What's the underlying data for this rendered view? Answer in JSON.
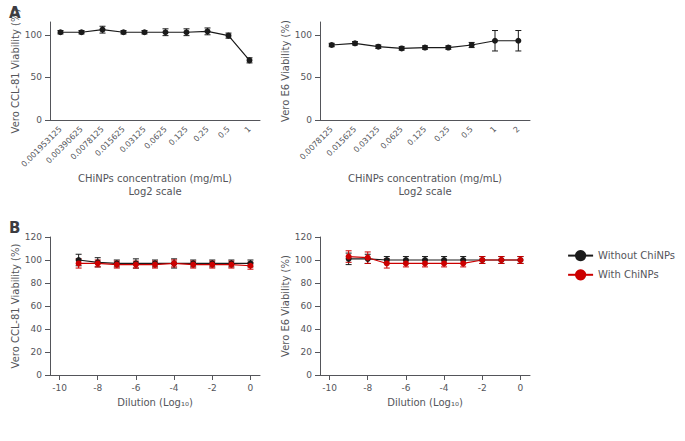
{
  "chart_data": [
    {
      "type": "line",
      "title": "A",
      "categories": [
        "0.001953125",
        "0.00390625",
        "0.0078125",
        "0.015625",
        "0.03125",
        "0.0625",
        "0.125",
        "0.25",
        "0.5",
        "1"
      ],
      "series": [
        {
          "color": "#1a1a1a",
          "values": [
            103,
            103,
            106,
            103,
            103,
            103,
            103,
            104,
            99,
            70
          ],
          "errors": [
            2,
            2,
            4,
            2,
            2,
            4,
            4,
            4,
            3,
            3
          ]
        }
      ],
      "xlabel": "CHiNPs concentration (mg/mL)\nLog2 scale",
      "ylabel": "Vero CCL-81 Viability (%)",
      "ylim": [
        0,
        115
      ],
      "yticks": [
        0,
        50,
        100
      ],
      "grid": false
    },
    {
      "type": "line",
      "categories": [
        "0.0078125",
        "0.015625",
        "0.03125",
        "0.0625",
        "0.125",
        "0.25",
        "0.5",
        "1",
        "2"
      ],
      "series": [
        {
          "color": "#1a1a1a",
          "values": [
            88,
            90,
            86,
            84,
            85,
            85,
            88,
            93,
            93
          ],
          "errors": [
            2,
            2,
            2,
            2,
            2,
            2,
            3,
            12,
            12
          ]
        }
      ],
      "xlabel": "CHiNPs concentration (mg/mL)\nLog2 scale",
      "ylabel": "Vero E6 Viability (%)",
      "ylim": [
        0,
        115
      ],
      "yticks": [
        0,
        50,
        100
      ],
      "grid": false
    },
    {
      "type": "line",
      "title": "B",
      "x": [
        -9,
        -8,
        -7,
        -6,
        -5,
        -4,
        -3,
        -2,
        -1,
        0
      ],
      "series": [
        {
          "name": "Without ChiNPs",
          "color": "#1a1a1a",
          "values": [
            100,
            98,
            97,
            97,
            97,
            97,
            97,
            97,
            97,
            97
          ],
          "errors": [
            5,
            4,
            3,
            4,
            3,
            4,
            3,
            3,
            3,
            3
          ]
        },
        {
          "name": "With ChiNPs",
          "color": "#cc0000",
          "values": [
            97,
            97,
            96,
            96,
            96,
            97,
            96,
            96,
            96,
            95
          ],
          "errors": [
            4,
            3,
            3,
            3,
            3,
            3,
            3,
            3,
            3,
            3
          ]
        }
      ],
      "xlabel": "Dilution (Log₁₀)",
      "ylabel": "Vero CCL-81 Viability (%)",
      "xlim": [
        -10.5,
        0.5
      ],
      "xticks": [
        -10,
        -8,
        -6,
        -4,
        -2,
        0
      ],
      "ylim": [
        0,
        120
      ],
      "yticks": [
        0,
        20,
        40,
        60,
        80,
        100,
        120
      ],
      "grid": false
    },
    {
      "type": "line",
      "x": [
        -9,
        -8,
        -7,
        -6,
        -5,
        -4,
        -3,
        -2,
        -1,
        0
      ],
      "series": [
        {
          "name": "Without ChiNPs",
          "color": "#1a1a1a",
          "values": [
            101,
            101,
            100,
            100,
            100,
            100,
            100,
            100,
            100,
            100
          ],
          "errors": [
            5,
            4,
            3,
            3,
            3,
            3,
            3,
            3,
            3,
            3
          ]
        },
        {
          "name": "With ChiNPs",
          "color": "#cc0000",
          "values": [
            103,
            102,
            97,
            97,
            97,
            97,
            97,
            100,
            100,
            100
          ],
          "errors": [
            5,
            5,
            4,
            3,
            3,
            3,
            3,
            3,
            3,
            3
          ]
        }
      ],
      "xlabel": "Dilution (Log₁₀)",
      "ylabel": "Vero E6 Viability (%)",
      "xlim": [
        -10.5,
        0.5
      ],
      "xticks": [
        -10,
        -8,
        -6,
        -4,
        -2,
        0
      ],
      "ylim": [
        0,
        120
      ],
      "yticks": [
        0,
        20,
        40,
        60,
        80,
        100,
        120
      ],
      "grid": false,
      "legend": "right"
    }
  ]
}
